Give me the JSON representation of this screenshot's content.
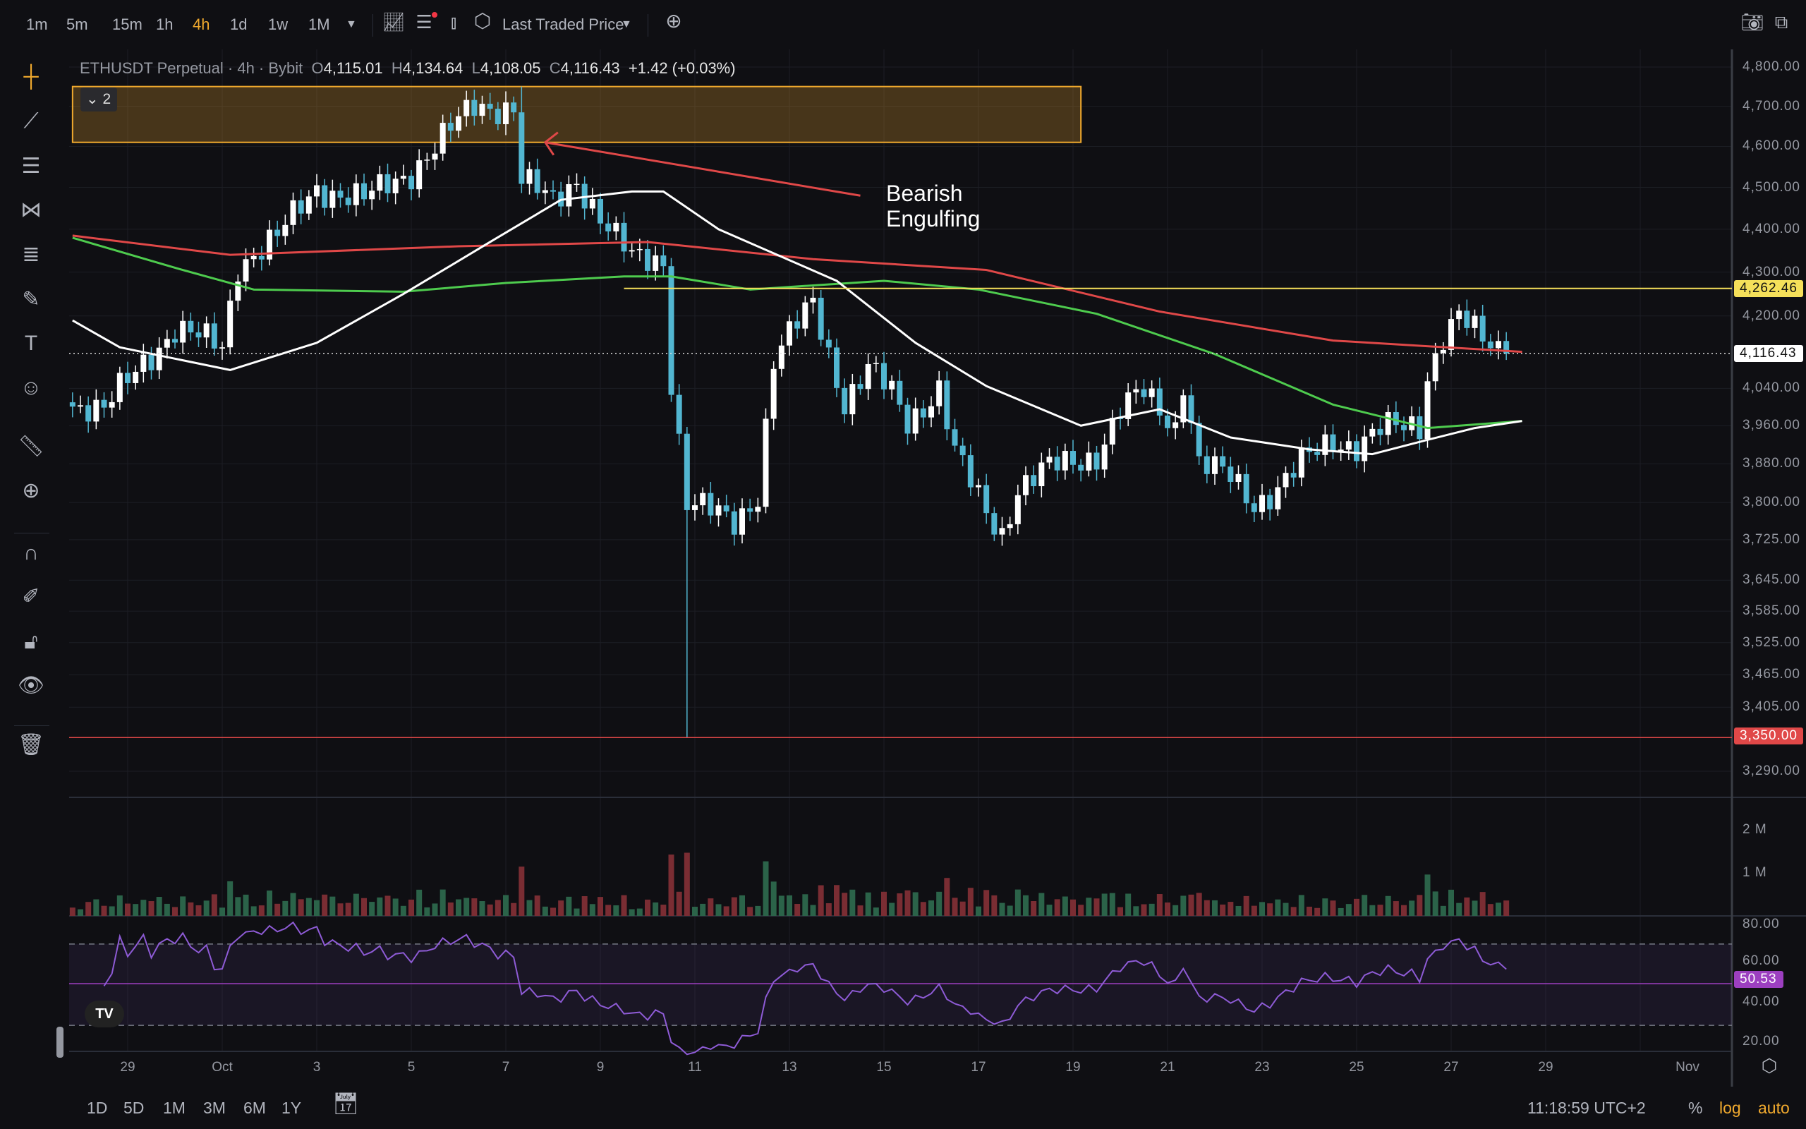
{
  "toolbar": {
    "timeframes": [
      "1m",
      "5m",
      "15m",
      "1h",
      "4h",
      "1d",
      "1w",
      "1M"
    ],
    "active_timeframe": "4h",
    "price_source": "Last Traded Price",
    "icons": [
      "indicators-icon",
      "chart-settings-icon",
      "candle-type-icon",
      "hexagon-settings-icon",
      "add-icon",
      "camera-icon",
      "fullscreen-icon"
    ]
  },
  "legend": {
    "symbol": "ETHUSDT Perpetual · 4h · Bybit",
    "o_label": "O",
    "o": "4,115.01",
    "h_label": "H",
    "h": "4,134.64",
    "l_label": "L",
    "l": "4,108.05",
    "c_label": "C",
    "c": "4,116.43",
    "change": "+1.42 (+0.03%)",
    "collapse_count": "2"
  },
  "left_tools": [
    "crosshair-icon",
    "trend-line-icon",
    "horizontal-lines-icon",
    "pattern-icon",
    "fib-icon",
    "brush-icon",
    "text-icon",
    "emoji-icon",
    "ruler-icon",
    "zoom-in-icon",
    "magnet-icon",
    "lock-drawing-icon",
    "unlock-icon",
    "eye-icon",
    "trash-icon"
  ],
  "annotation": {
    "text_line1": "Bearish",
    "text_line2": "Engulfing"
  },
  "colors": {
    "up": "#ffffff",
    "down": "#52b6d1",
    "ma_fast": "#ffffff",
    "ma_mid": "#4ecb4e",
    "ma_slow": "#e04848",
    "zone": "#f0a92e",
    "yellow_line": "#f5e05a",
    "red_line": "#e04848",
    "rsi": "#8e5bd6",
    "accent": "#f0a92e"
  },
  "price_axis": {
    "ticks": [
      "4,800.00",
      "4,700.00",
      "4,600.00",
      "4,500.00",
      "4,400.00",
      "4,300.00",
      "4,200.00",
      "4,040.00",
      "3,960.00",
      "3,880.00",
      "3,800.00",
      "3,725.00",
      "3,645.00",
      "3,585.00",
      "3,525.00",
      "3,465.00",
      "3,405.00",
      "3,290.00"
    ],
    "scale": "log",
    "yellow_tag": "4,262.46",
    "last_tag": "4,116.43",
    "red_tag": "3,350.00"
  },
  "volume_axis": {
    "ticks": [
      "2 M",
      "1 M"
    ]
  },
  "rsi_axis": {
    "ticks": [
      "80.00",
      "60.00",
      "40.00",
      "20.00"
    ],
    "value_tag": "50.53",
    "bands": [
      70,
      30
    ]
  },
  "date_axis": {
    "labels": [
      "29",
      "Oct",
      "3",
      "5",
      "7",
      "9",
      "11",
      "13",
      "15",
      "17",
      "19",
      "21",
      "23",
      "25",
      "27",
      "29",
      "Nov"
    ]
  },
  "bottom_bar": {
    "ranges": [
      "1D",
      "5D",
      "1M",
      "3M",
      "6M",
      "1Y"
    ],
    "time": "11:18:59 UTC+2",
    "percent": "%",
    "log": "log",
    "auto": "auto"
  },
  "chart_data": {
    "type": "candlestick",
    "interval": "4h",
    "yscale": "log",
    "ylim": [
      3260,
      4830
    ],
    "price_path": [
      [
        "Sep 27 20:00",
        4010
      ],
      [
        "Sep 28 12:00",
        3990
      ],
      [
        "Sep 29 08:00",
        4100
      ],
      [
        "Sep 30 00:00",
        4170
      ],
      [
        "Oct 1 00:00",
        4130
      ],
      [
        "Oct 1 08:00",
        4320
      ],
      [
        "Oct 2 04:00",
        4380
      ],
      [
        "Oct 3 00:00",
        4500
      ],
      [
        "Oct 4 00:00",
        4470
      ],
      [
        "Oct 5 00:00",
        4540
      ],
      [
        "Oct 5 12:00",
        4600
      ],
      [
        "Oct 6 08:00",
        4700
      ],
      [
        "Oct 7 04:00",
        4700
      ],
      [
        "Oct 7 08:00",
        4520
      ],
      [
        "Oct 8 00:00",
        4460
      ],
      [
        "Oct 8 12:00",
        4520
      ],
      [
        "Oct 9 04:00",
        4400
      ],
      [
        "Oct 9 16:00",
        4330
      ],
      [
        "Oct 10 08:00",
        4330
      ],
      [
        "Oct 10 12:00",
        4060
      ],
      [
        "Oct 10 20:00",
        3800
      ],
      [
        "Oct 11 08:00",
        3780
      ],
      [
        "Oct 11 20:00",
        3760
      ],
      [
        "Oct 12 08:00",
        3820
      ],
      [
        "Oct 12 16:00",
        4100
      ],
      [
        "Oct 13 04:00",
        4180
      ],
      [
        "Oct 13 12:00",
        4230
      ],
      [
        "Oct 13 20:00",
        4120
      ],
      [
        "Oct 14 04:00",
        4010
      ],
      [
        "Oct 14 16:00",
        4080
      ],
      [
        "Oct 15 04:00",
        4030
      ],
      [
        "Oct 15 12:00",
        3970
      ],
      [
        "Oct 16 04:00",
        4040
      ],
      [
        "Oct 16 12:00",
        3900
      ],
      [
        "Oct 17 04:00",
        3780
      ],
      [
        "Oct 17 12:00",
        3740
      ],
      [
        "Oct 17 20:00",
        3830
      ],
      [
        "Oct 18 12:00",
        3870
      ],
      [
        "Oct 19 12:00",
        3900
      ],
      [
        "Oct 20 00:00",
        3990
      ],
      [
        "Oct 20 12:00",
        4030
      ],
      [
        "Oct 21 04:00",
        3960
      ],
      [
        "Oct 21 08:00",
        4060
      ],
      [
        "Oct 21 16:00",
        3880
      ],
      [
        "Oct 22 08:00",
        3850
      ],
      [
        "Oct 22 20:00",
        3800
      ],
      [
        "Oct 23 08:00",
        3830
      ],
      [
        "Oct 23 20:00",
        3880
      ],
      [
        "Oct 24 12:00",
        3930
      ],
      [
        "Oct 25 00:00",
        3920
      ],
      [
        "Oct 25 12:00",
        3950
      ],
      [
        "Oct 26 08:00",
        3960
      ],
      [
        "Oct 26 12:00",
        4070
      ],
      [
        "Oct 26 20:00",
        4160
      ],
      [
        "Oct 27 04:00",
        4200
      ],
      [
        "Oct 27 16:00",
        4140
      ],
      [
        "Oct 28 04:00",
        4116.43
      ]
    ],
    "extremes": [
      [
        "Oct 7 08:00",
        "high",
        4750
      ],
      [
        "Oct 10 20:00",
        "low",
        3350
      ]
    ],
    "ma_fast": [
      [
        "Sep 27 20:00",
        4190
      ],
      [
        "Sep 28 20:00",
        4130
      ],
      [
        "Oct 1 04:00",
        4080
      ],
      [
        "Oct 3 00:00",
        4140
      ],
      [
        "Oct 4 20:00",
        4250
      ],
      [
        "Oct 6 16:00",
        4370
      ],
      [
        "Oct 8 04:00",
        4470
      ],
      [
        "Oct 9 16:00",
        4490
      ],
      [
        "Oct 10 08:00",
        4490
      ],
      [
        "Oct 11 12:00",
        4400
      ],
      [
        "Oct 14 00:00",
        4280
      ],
      [
        "Oct 15 16:00",
        4140
      ],
      [
        "Oct 17 04:00",
        4045
      ],
      [
        "Oct 19 04:00",
        3960
      ],
      [
        "Oct 20 20:00",
        3995
      ],
      [
        "Oct 22 08:00",
        3935
      ],
      [
        "Oct 24 00:00",
        3910
      ],
      [
        "Oct 25 08:00",
        3900
      ],
      [
        "Oct 26 12:00",
        3930
      ],
      [
        "Oct 27 12:00",
        3955
      ],
      [
        "Oct 28 12:00",
        3970
      ]
    ],
    "ma_mid": [
      [
        "Sep 27 20:00",
        4380
      ],
      [
        "Sep 30 00:00",
        4310
      ],
      [
        "Oct 1 16:00",
        4260
      ],
      [
        "Oct 4 20:00",
        4255
      ],
      [
        "Oct 7 00:00",
        4275
      ],
      [
        "Oct 9 12:00",
        4290
      ],
      [
        "Oct 10 12:00",
        4290
      ],
      [
        "Oct 12 04:00",
        4260
      ],
      [
        "Oct 15 00:00",
        4280
      ],
      [
        "Oct 17 00:00",
        4260
      ],
      [
        "Oct 19 12:00",
        4205
      ],
      [
        "Oct 22 00:00",
        4115
      ],
      [
        "Oct 24 12:00",
        4005
      ],
      [
        "Oct 26 12:00",
        3955
      ],
      [
        "Oct 28 12:00",
        3970
      ]
    ],
    "ma_slow": [
      [
        "Sep 27 20:00",
        4385
      ],
      [
        "Oct 1 04:00",
        4340
      ],
      [
        "Oct 6 00:00",
        4360
      ],
      [
        "Oct 10 00:00",
        4370
      ],
      [
        "Oct 13 12:00",
        4330
      ],
      [
        "Oct 17 04:00",
        4305
      ],
      [
        "Oct 20 20:00",
        4210
      ],
      [
        "Oct 24 12:00",
        4145
      ],
      [
        "Oct 28 12:00",
        4120
      ]
    ],
    "zone": {
      "from": "Sep 27 20:00",
      "to": "Oct 19 04:00",
      "top": 4750,
      "bottom": 4610
    },
    "arrow": {
      "from": [
        "Oct 14 12:00",
        4480
      ],
      "to": [
        "Oct 7 20:00",
        4610
      ]
    },
    "horizontal_levels": [
      {
        "price": 4262.46,
        "from": "Oct 9 12:00"
      },
      {
        "price": 3350
      }
    ]
  }
}
